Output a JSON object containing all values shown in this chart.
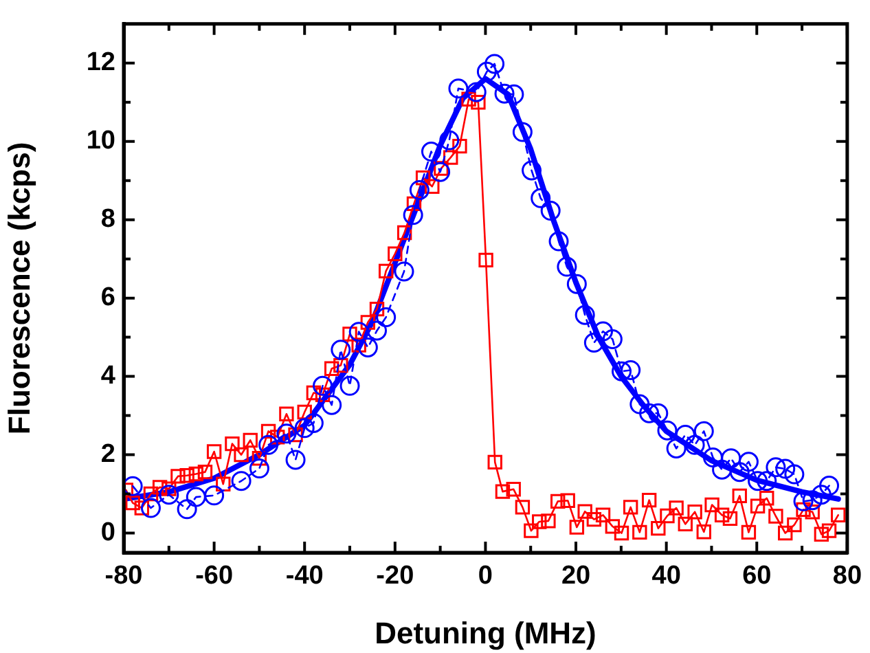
{
  "chart_data": {
    "type": "line",
    "xlabel": "Detuning (MHz)",
    "ylabel": "Fluorescence (kcps)",
    "xlim": [
      -80,
      80
    ],
    "ylim": [
      -0.5,
      13
    ],
    "xticks": [
      -80,
      {
        "value": -70,
        "label": null
      },
      -60,
      {
        "value": -50,
        "label": null
      },
      -40,
      {
        "value": -30,
        "label": null
      },
      -20,
      {
        "value": -10,
        "label": null
      },
      0,
      {
        "value": 10,
        "label": null
      },
      20,
      {
        "value": 30,
        "label": null
      },
      40,
      {
        "value": 50,
        "label": null
      },
      60,
      {
        "value": 70,
        "label": null
      },
      80
    ],
    "yticks": [
      0,
      {
        "value": 1,
        "label": null
      },
      2,
      {
        "value": 3,
        "label": null
      },
      4,
      {
        "value": 5,
        "label": null
      },
      6,
      {
        "value": 7,
        "label": null
      },
      8,
      {
        "value": 9,
        "label": null
      },
      10,
      {
        "value": 11,
        "label": null
      },
      12
    ],
    "grid": false,
    "legend": false,
    "series": [
      {
        "color": "#0000ff",
        "marker": "circle",
        "line_style": "dashed",
        "x": [
          -78,
          -74,
          -70,
          -66,
          -64,
          -60,
          -54,
          -50,
          -48,
          -44,
          -42,
          -40,
          -38,
          -36,
          -34,
          -32,
          -30,
          -28,
          -26,
          -24,
          -22,
          -18,
          -16,
          -14.6,
          -12,
          -10,
          -8,
          -6,
          -2,
          0.3,
          2,
          4.2,
          6.3,
          8.2,
          10.2,
          12.2,
          14.4,
          16.2,
          18,
          20.2,
          22,
          24,
          26,
          28.1,
          30.1,
          32.1,
          34.1,
          36.2,
          38.2,
          40.2,
          42.2,
          44.2,
          46.3,
          48.3,
          50.3,
          52.3,
          54.3,
          56.2,
          58.2,
          60.2,
          62.2,
          64.2,
          66.3,
          68.3,
          70.3,
          72.3,
          74.3,
          76
        ],
        "values": [
          1.2,
          0.64,
          0.98,
          0.61,
          0.92,
          0.96,
          1.33,
          1.65,
          2.25,
          2.54,
          1.87,
          2.68,
          2.81,
          3.76,
          3.27,
          4.68,
          3.76,
          5.14,
          4.74,
          5.17,
          5.51,
          6.68,
          8.12,
          8.76,
          9.74,
          9.22,
          10.03,
          11.35,
          11.26,
          11.78,
          11.98,
          11.22,
          11.2,
          10.24,
          9.26,
          8.55,
          8.23,
          7.45,
          6.8,
          6.36,
          5.57,
          4.86,
          5.15,
          4.95,
          4.13,
          4.16,
          3.29,
          3.06,
          3.06,
          2.62,
          2.16,
          2.51,
          2.25,
          2.6,
          1.93,
          1.62,
          1.91,
          1.56,
          1.82,
          1.33,
          1.33,
          1.68,
          1.64,
          1.5,
          0.81,
          0.84,
          0.98,
          1.21
        ]
      },
      {
        "color": "#ff0000",
        "marker": "square",
        "line_style": "solid",
        "x": [
          -79.5,
          -78,
          -76,
          -74,
          -72,
          -70,
          -68,
          -66,
          -64,
          -62,
          -60,
          -58,
          -56,
          -54,
          -52,
          -50,
          -48,
          -46,
          -44,
          -42,
          -40,
          -38,
          -36,
          -34,
          -32,
          -30,
          -28,
          -26,
          -24,
          -22,
          -20,
          -17.9,
          -15.8,
          -13.8,
          -11.8,
          -9.8,
          -7.7,
          -5.7,
          -3.7,
          -1.6,
          0.1,
          2.1,
          3.8,
          6.2,
          8.2,
          10.1,
          11.9,
          13.9,
          16,
          18.2,
          20.2,
          22,
          24,
          26,
          28.1,
          30.1,
          32.1,
          34.1,
          36.2,
          38.2,
          40.2,
          42.2,
          44.2,
          46.3,
          48.3,
          50.1,
          52.3,
          54.1,
          56.2,
          58.2,
          60.2,
          62.2,
          64.2,
          66.3,
          68.3,
          70.3,
          72.3,
          74.3,
          76,
          78
        ],
        "values": [
          1.1,
          0.77,
          0.64,
          1.0,
          1.17,
          1.13,
          1.45,
          1.47,
          1.51,
          1.56,
          2.08,
          1.25,
          2.28,
          2.0,
          2.37,
          1.91,
          2.6,
          2.45,
          3.04,
          2.51,
          3.09,
          3.58,
          3.53,
          4.2,
          4.28,
          5.08,
          4.8,
          5.38,
          5.72,
          6.69,
          7.13,
          7.67,
          8.41,
          9.07,
          8.85,
          9.31,
          9.59,
          9.88,
          11.08,
          11.0,
          6.97,
          1.81,
          1.06,
          1.12,
          0.66,
          0.06,
          0.29,
          0.31,
          0.81,
          0.83,
          0.15,
          0.55,
          0.35,
          0.46,
          0.17,
          0.0,
          0.66,
          0.02,
          0.84,
          0.12,
          0.44,
          0.64,
          0.23,
          0.54,
          0.03,
          0.72,
          0.46,
          0.37,
          0.95,
          0.02,
          0.69,
          0.89,
          0.43,
          0.0,
          0.21,
          0.6,
          0.54,
          -0.03,
          0.06,
          0.46
        ]
      },
      {
        "color": "#0000ff",
        "marker": "none",
        "line_style": "solid",
        "x": [
          -80,
          -70,
          -60,
          -50,
          -40,
          -30,
          -25,
          -20,
          -15,
          -10,
          -5,
          0,
          5,
          10,
          15,
          20,
          25,
          30,
          35,
          40,
          50,
          60,
          70,
          78
        ],
        "values": [
          0.87,
          1.05,
          1.4,
          2.0,
          2.75,
          4.3,
          5.4,
          6.9,
          8.4,
          9.9,
          11.1,
          11.6,
          11.2,
          9.8,
          8.0,
          6.4,
          5.0,
          4.0,
          3.25,
          2.6,
          1.85,
          1.35,
          1.05,
          0.87
        ]
      }
    ]
  }
}
